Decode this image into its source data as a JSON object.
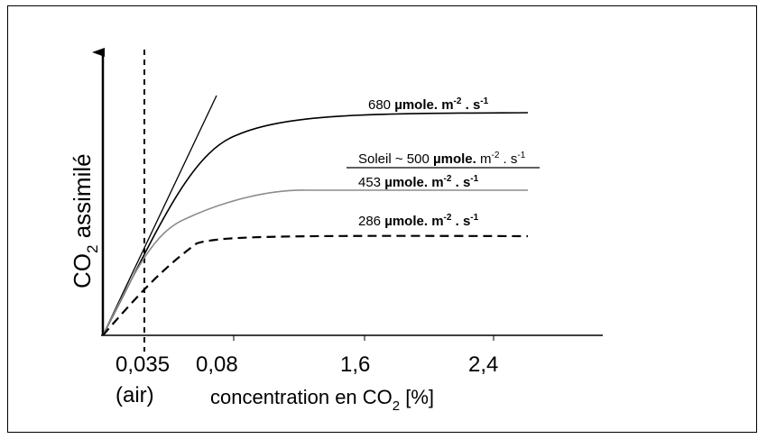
{
  "chart_data": {
    "type": "line",
    "ylabel": {
      "pre": "CO",
      "sub": "2",
      "post": " assimilé"
    },
    "xlabel": {
      "pre": "concentration en CO",
      "sub": "2",
      "post": " [%]"
    },
    "x_ticks": [
      "0,035",
      "0,08",
      "1,6",
      "2,4"
    ],
    "x_tick_note": "(air)",
    "series": [
      {
        "name": "680 µmole. m-2 . s-1",
        "label": {
          "value": "680 ",
          "unit": "µmole. m",
          "exp1": "-2",
          "mid": " . s",
          "exp2": "-1"
        },
        "style": "solid",
        "color": "#000000"
      },
      {
        "name": "453 µmole. m-2 . s-1",
        "label": {
          "value": "453 ",
          "unit": "µmole. m",
          "exp1": "-2",
          "mid": " . s",
          "exp2": "-1"
        },
        "style": "solid",
        "color": "#8c8c8c"
      },
      {
        "name": "286 µmole. m-2 . s-1",
        "label": {
          "value": "286 ",
          "unit": "µmole. m",
          "exp1": "-2",
          "mid": " . s",
          "exp2": "-1"
        },
        "style": "dashed",
        "color": "#000000"
      }
    ],
    "reference_line": {
      "label": {
        "pre": "Soleil ~ 500 ",
        "unit": "µmole.",
        "rest": " m",
        "exp1": "-2",
        "mid": " . s",
        "exp2": "-1"
      }
    },
    "vertical_marker": "0,035 (air)",
    "tangent_line": true
  }
}
